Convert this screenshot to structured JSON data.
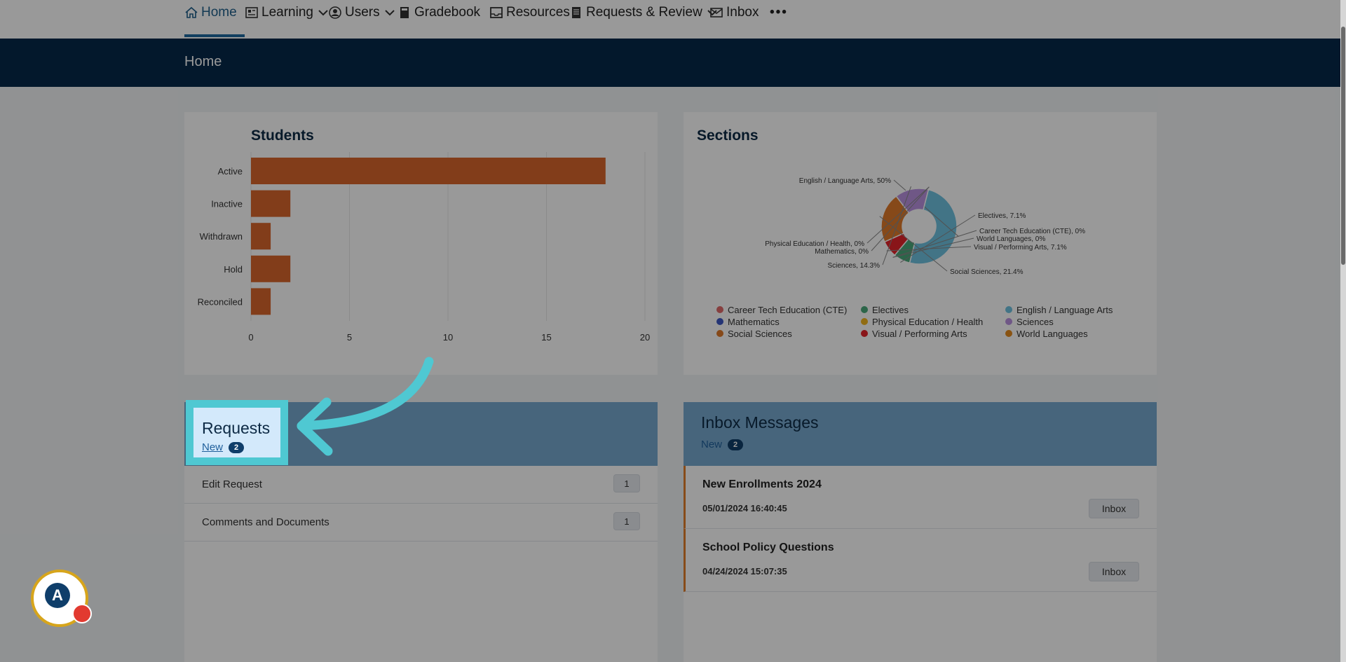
{
  "nav": {
    "home": "Home",
    "learning": "Learning",
    "users": "Users",
    "gradebook": "Gradebook",
    "resources": "Resources",
    "requests_review": "Requests & Review",
    "inbox": "Inbox",
    "more": "•••"
  },
  "page_title": "Home",
  "students": {
    "title": "Students",
    "chart_data": {
      "type": "bar",
      "orientation": "horizontal",
      "categories": [
        "Active",
        "Inactive",
        "Withdrawn",
        "Hold",
        "Reconciled"
      ],
      "values": [
        18,
        2,
        1,
        2,
        1
      ],
      "xlim": [
        0,
        20
      ],
      "ticks": [
        "0",
        "5",
        "10",
        "15",
        "20"
      ],
      "color": "#d9672c",
      "grid": true
    }
  },
  "sections": {
    "title": "Sections",
    "chart_data": {
      "type": "pie",
      "donut": true,
      "slices": [
        {
          "name": "English / Language Arts",
          "value": 50,
          "label": "English / Language Arts, 50%",
          "color": "#6fc2e0"
        },
        {
          "name": "Electives",
          "value": 7.1,
          "label": "Electives, 7.1%",
          "color": "#4aa97b"
        },
        {
          "name": "Career Tech Education (CTE)",
          "value": 0,
          "label": "Career Tech Education (CTE), 0%",
          "color": "#e06a6a"
        },
        {
          "name": "World Languages",
          "value": 0,
          "label": "World Languages, 0%",
          "color": "#e58a1f"
        },
        {
          "name": "Visual / Performing Arts",
          "value": 7.1,
          "label": "Visual / Performing Arts, 7.1%",
          "color": "#e5232b"
        },
        {
          "name": "Social Sciences",
          "value": 21.4,
          "label": "Social Sciences, 21.4%",
          "color": "#e07a2a"
        },
        {
          "name": "Sciences",
          "value": 14.3,
          "label": "Sciences, 14.3%",
          "color": "#b992e0"
        },
        {
          "name": "Mathematics",
          "value": 0,
          "label": "Mathematics, 0%",
          "color": "#3d57c4"
        },
        {
          "name": "Physical Education / Health",
          "value": 0,
          "label": "Physical Education / Health, 0%",
          "color": "#f0b51e"
        }
      ],
      "legend": [
        {
          "label": "Career Tech Education (CTE)",
          "color": "#e06a6a"
        },
        {
          "label": "Electives",
          "color": "#4aa97b"
        },
        {
          "label": "English / Language Arts",
          "color": "#6fc2e0"
        },
        {
          "label": "Mathematics",
          "color": "#3d57c4"
        },
        {
          "label": "Physical Education / Health",
          "color": "#f0b51e"
        },
        {
          "label": "Sciences",
          "color": "#b992e0"
        },
        {
          "label": "Social Sciences",
          "color": "#e07a2a"
        },
        {
          "label": "Visual / Performing Arts",
          "color": "#e5232b"
        },
        {
          "label": "World Languages",
          "color": "#e58a1f"
        }
      ]
    }
  },
  "requests": {
    "title": "Requests",
    "new_label": "New",
    "new_count": "2",
    "items": [
      {
        "label": "Edit Request",
        "count": "1"
      },
      {
        "label": "Comments and Documents",
        "count": "1"
      }
    ]
  },
  "inbox_messages": {
    "title": "Inbox Messages",
    "new_label": "New",
    "new_count": "2",
    "messages": [
      {
        "subject": "New Enrollments 2024",
        "date": "05/01/2024 16:40:45",
        "button": "Inbox"
      },
      {
        "subject": "School Policy Questions",
        "date": "04/24/2024 15:07:35",
        "button": "Inbox"
      }
    ]
  },
  "assistant": {
    "letter": "A"
  },
  "colors": {
    "accent": "#1f6aa1",
    "header_bg": "#06294a",
    "highlight": "#4fc8d2",
    "bar": "#d9672c"
  }
}
